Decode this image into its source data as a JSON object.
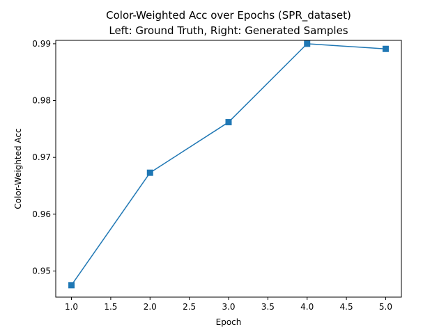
{
  "chart_data": {
    "type": "line",
    "title_lines": [
      "Color-Weighted Acc over Epochs (SPR_dataset)",
      "Left: Ground Truth, Right: Generated Samples"
    ],
    "xlabel": "Epoch",
    "ylabel": "Color-Weighted Acc",
    "x": [
      1.0,
      2.0,
      3.0,
      4.0,
      5.0
    ],
    "series": [
      {
        "values": [
          0.9475,
          0.9673,
          0.9762,
          0.99,
          0.9891
        ]
      }
    ],
    "xlim": [
      0.8,
      5.2
    ],
    "ylim": [
      0.9454,
      0.9906
    ],
    "xticks": [
      1.0,
      1.5,
      2.0,
      2.5,
      3.0,
      3.5,
      4.0,
      4.5,
      5.0
    ],
    "xtick_labels": [
      "1.0",
      "1.5",
      "2.0",
      "2.5",
      "3.0",
      "3.5",
      "4.0",
      "4.5",
      "5.0"
    ],
    "yticks": [
      0.95,
      0.96,
      0.97,
      0.98,
      0.99
    ],
    "ytick_labels": [
      "0.95",
      "0.96",
      "0.97",
      "0.98",
      "0.99"
    ],
    "grid": false,
    "marker": "square",
    "line_color": "#1f77b4"
  }
}
